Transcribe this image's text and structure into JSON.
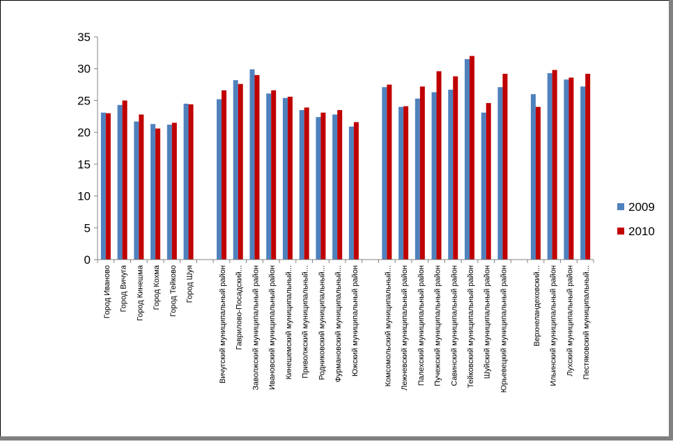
{
  "colors": {
    "series_2009": "#4F81BD",
    "series_2010": "#C00000",
    "axis": "#808080",
    "text": "#000000"
  },
  "chart_data": {
    "type": "bar",
    "title": "",
    "xlabel": "",
    "ylabel": "",
    "ylim": [
      0,
      35
    ],
    "yticks": [
      0,
      5,
      10,
      15,
      20,
      25,
      30,
      35
    ],
    "grid": false,
    "legend": "right",
    "categories": [
      "Город Иваново",
      "Город Вичуга",
      "Город Кинешма",
      "Город Кохма",
      "Город Тейково",
      "Город Шуя",
      "",
      "Вичугский муниципальный район",
      "Гаврилово-Посадский...",
      "Заволжский муниципальный район",
      "Ивановский муниципальный район",
      "Кинешемский муниципальный...",
      "Приволжский муниципальный...",
      "Родниковский муниципальный...",
      "Фурмановский муниципальный...",
      "Южский муниципальный район",
      "",
      "Комсомольский муниципальный...",
      "Лежневский муниципальный район",
      "Палехский муниципальный район",
      "Пучежский муниципальный район",
      "Савинский муниципальный район",
      "Тейковский муниципальный район",
      "Шуйский муниципальный район",
      "Юрьевецкий муниципальный район",
      "",
      "Верхнеландеховский...",
      "Ильинский муниципальный район",
      "Лухский муниципальный район",
      "Пестяковский муниципальный..."
    ],
    "series": [
      {
        "name": "2009",
        "values": [
          23.1,
          24.3,
          21.7,
          21.3,
          21.2,
          24.5,
          null,
          25.2,
          28.2,
          29.9,
          26.1,
          25.4,
          23.5,
          22.4,
          22.8,
          20.9,
          null,
          27.1,
          24.0,
          25.3,
          26.3,
          26.7,
          31.5,
          23.1,
          27.1,
          null,
          26.0,
          29.3,
          28.3,
          27.2
        ]
      },
      {
        "name": "2010",
        "values": [
          23.0,
          25.0,
          22.8,
          20.6,
          21.5,
          24.4,
          null,
          26.6,
          27.6,
          29.0,
          26.6,
          25.6,
          23.9,
          23.1,
          23.5,
          21.6,
          null,
          27.5,
          24.1,
          27.2,
          29.6,
          28.8,
          32.0,
          24.6,
          29.2,
          null,
          24.0,
          29.8,
          28.6,
          29.2
        ]
      }
    ]
  }
}
